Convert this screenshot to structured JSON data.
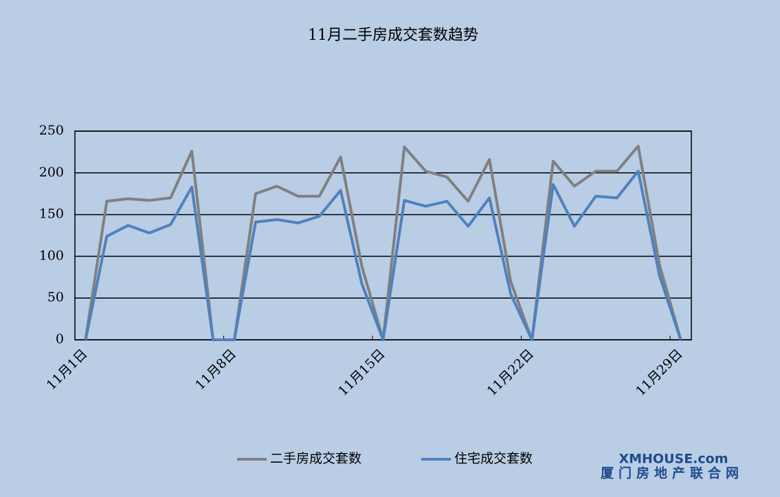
{
  "chart_data": {
    "type": "line",
    "title": "11月二手房成交套数趋势",
    "categories": [
      "11月1日",
      null,
      null,
      null,
      null,
      null,
      null,
      "11月8日",
      null,
      null,
      null,
      null,
      null,
      null,
      "11月15日",
      null,
      null,
      null,
      null,
      null,
      null,
      "11月22日",
      null,
      null,
      null,
      null,
      null,
      null,
      "11月29日"
    ],
    "series": [
      {
        "name": "二手房成交套数",
        "color": "#808080",
        "values": [
          0,
          166,
          169,
          167,
          170,
          226,
          0,
          0,
          175,
          184,
          172,
          172,
          219,
          88,
          0,
          231,
          202,
          195,
          166,
          216,
          70,
          0,
          214,
          184,
          202,
          202,
          232,
          90,
          0
        ]
      },
      {
        "name": "住宅成交套数",
        "color": "#4f81bd",
        "values": [
          0,
          124,
          137,
          128,
          138,
          183,
          0,
          0,
          141,
          144,
          140,
          148,
          179,
          67,
          0,
          167,
          160,
          166,
          136,
          170,
          55,
          0,
          186,
          136,
          172,
          170,
          202,
          77,
          0
        ]
      }
    ],
    "ylim": [
      0,
      250
    ],
    "yticks": [
      0,
      50,
      100,
      150,
      200,
      250
    ],
    "grid": true,
    "legend": "bottom",
    "watermark": {
      "brand": "XMHOUSE.com",
      "subtitle": "厦门房地产联合网"
    }
  }
}
